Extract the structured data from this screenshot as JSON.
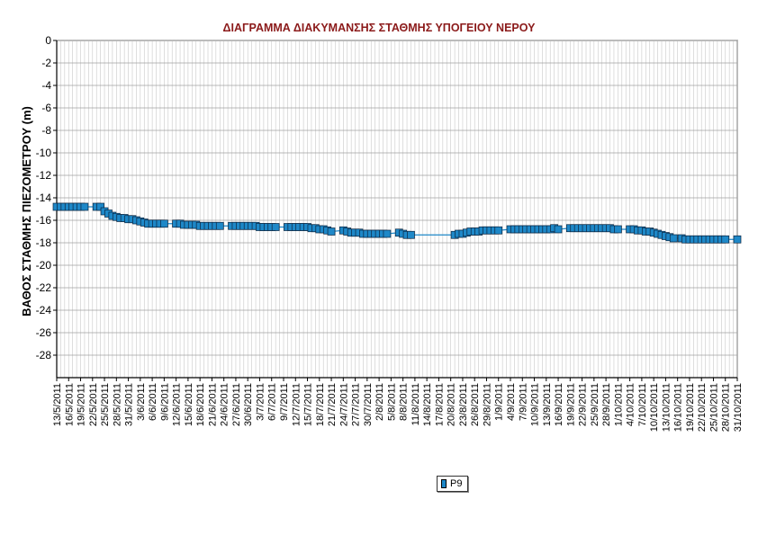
{
  "chart_data": {
    "type": "line",
    "title": "ΔΙΑΓΡΑΜΜΑ ΔΙΑΚΥΜΑΝΣΗΣ ΣΤΑΘΜΗΣ ΥΠΟΓΕΙΟΥ ΝΕΡΟΥ",
    "xlabel": "",
    "ylabel": "ΒΑΘΟΣ ΣΤΑΘΜΗΣ ΠΙΕΖΟΜΕΤΡΟΥ (m)",
    "ylim": [
      -30,
      0
    ],
    "yticks": [
      0,
      -2,
      -4,
      -6,
      -8,
      -10,
      -12,
      -14,
      -16,
      -18,
      -20,
      -22,
      -24,
      -26,
      -28
    ],
    "xlim": [
      "2011-05-13",
      "2011-10-31"
    ],
    "xtick_labels": [
      "13/5/2011",
      "16/5/2011",
      "19/5/2011",
      "22/5/2011",
      "25/5/2011",
      "28/5/2011",
      "31/5/2011",
      "3/6/2011",
      "6/6/2011",
      "9/6/2011",
      "12/6/2011",
      "15/6/2011",
      "18/6/2011",
      "21/6/2011",
      "24/6/2011",
      "27/6/2011",
      "30/6/2011",
      "3/7/2011",
      "6/7/2011",
      "9/7/2011",
      "12/7/2011",
      "15/7/2011",
      "18/7/2011",
      "21/7/2011",
      "24/7/2011",
      "27/7/2011",
      "30/7/2011",
      "2/8/2011",
      "5/8/2011",
      "8/8/2011",
      "11/8/2011",
      "14/8/2011",
      "17/8/2011",
      "20/8/2011",
      "23/8/2011",
      "26/8/2011",
      "29/8/2011",
      "1/9/2011",
      "4/9/2011",
      "7/9/2011",
      "10/9/2011",
      "13/9/2011",
      "16/9/2011",
      "19/9/2011",
      "22/9/2011",
      "25/9/2011",
      "28/9/2011",
      "1/10/2011",
      "4/10/2011",
      "7/10/2011",
      "10/10/2011",
      "13/10/2011",
      "16/10/2011",
      "19/10/2011",
      "22/10/2011",
      "25/10/2011",
      "28/10/2011",
      "31/10/2011"
    ],
    "grid": true,
    "legend": "bottom-center",
    "series": [
      {
        "name": "P9",
        "color": "#1e88c8",
        "marker": "square",
        "points": [
          [
            "2011-05-13",
            -14.8
          ],
          [
            "2011-05-14",
            -14.8
          ],
          [
            "2011-05-15",
            -14.8
          ],
          [
            "2011-05-16",
            -14.8
          ],
          [
            "2011-05-17",
            -14.8
          ],
          [
            "2011-05-18",
            -14.8
          ],
          [
            "2011-05-19",
            -14.8
          ],
          [
            "2011-05-20",
            -14.8
          ],
          [
            "2011-05-23",
            -14.8
          ],
          [
            "2011-05-24",
            -14.8
          ],
          [
            "2011-05-25",
            -15.2
          ],
          [
            "2011-05-26",
            -15.4
          ],
          [
            "2011-05-27",
            -15.6
          ],
          [
            "2011-05-28",
            -15.7
          ],
          [
            "2011-05-29",
            -15.8
          ],
          [
            "2011-05-30",
            -15.8
          ],
          [
            "2011-05-31",
            -15.9
          ],
          [
            "2011-06-01",
            -15.9
          ],
          [
            "2011-06-02",
            -16.0
          ],
          [
            "2011-06-03",
            -16.1
          ],
          [
            "2011-06-04",
            -16.2
          ],
          [
            "2011-06-05",
            -16.3
          ],
          [
            "2011-06-06",
            -16.3
          ],
          [
            "2011-06-07",
            -16.3
          ],
          [
            "2011-06-08",
            -16.3
          ],
          [
            "2011-06-09",
            -16.3
          ],
          [
            "2011-06-12",
            -16.3
          ],
          [
            "2011-06-13",
            -16.3
          ],
          [
            "2011-06-14",
            -16.4
          ],
          [
            "2011-06-15",
            -16.4
          ],
          [
            "2011-06-16",
            -16.4
          ],
          [
            "2011-06-17",
            -16.4
          ],
          [
            "2011-06-18",
            -16.5
          ],
          [
            "2011-06-19",
            -16.5
          ],
          [
            "2011-06-20",
            -16.5
          ],
          [
            "2011-06-21",
            -16.5
          ],
          [
            "2011-06-22",
            -16.5
          ],
          [
            "2011-06-23",
            -16.5
          ],
          [
            "2011-06-26",
            -16.5
          ],
          [
            "2011-06-27",
            -16.5
          ],
          [
            "2011-06-28",
            -16.5
          ],
          [
            "2011-06-29",
            -16.5
          ],
          [
            "2011-06-30",
            -16.5
          ],
          [
            "2011-07-01",
            -16.5
          ],
          [
            "2011-07-02",
            -16.5
          ],
          [
            "2011-07-03",
            -16.6
          ],
          [
            "2011-07-04",
            -16.6
          ],
          [
            "2011-07-05",
            -16.6
          ],
          [
            "2011-07-06",
            -16.6
          ],
          [
            "2011-07-07",
            -16.6
          ],
          [
            "2011-07-10",
            -16.6
          ],
          [
            "2011-07-11",
            -16.6
          ],
          [
            "2011-07-12",
            -16.6
          ],
          [
            "2011-07-13",
            -16.6
          ],
          [
            "2011-07-14",
            -16.6
          ],
          [
            "2011-07-15",
            -16.6
          ],
          [
            "2011-07-16",
            -16.7
          ],
          [
            "2011-07-17",
            -16.7
          ],
          [
            "2011-07-18",
            -16.8
          ],
          [
            "2011-07-19",
            -16.8
          ],
          [
            "2011-07-20",
            -16.9
          ],
          [
            "2011-07-21",
            -17.0
          ],
          [
            "2011-07-24",
            -16.9
          ],
          [
            "2011-07-25",
            -17.0
          ],
          [
            "2011-07-26",
            -17.1
          ],
          [
            "2011-07-27",
            -17.1
          ],
          [
            "2011-07-28",
            -17.1
          ],
          [
            "2011-07-29",
            -17.2
          ],
          [
            "2011-07-30",
            -17.2
          ],
          [
            "2011-07-31",
            -17.2
          ],
          [
            "2011-08-01",
            -17.2
          ],
          [
            "2011-08-02",
            -17.2
          ],
          [
            "2011-08-03",
            -17.2
          ],
          [
            "2011-08-04",
            -17.2
          ],
          [
            "2011-08-07",
            -17.1
          ],
          [
            "2011-08-08",
            -17.2
          ],
          [
            "2011-08-09",
            -17.3
          ],
          [
            "2011-08-10",
            -17.3
          ],
          [
            "2011-08-21",
            -17.3
          ],
          [
            "2011-08-22",
            -17.2
          ],
          [
            "2011-08-23",
            -17.2
          ],
          [
            "2011-08-24",
            -17.1
          ],
          [
            "2011-08-25",
            -17.0
          ],
          [
            "2011-08-26",
            -17.0
          ],
          [
            "2011-08-27",
            -17.0
          ],
          [
            "2011-08-28",
            -16.9
          ],
          [
            "2011-08-29",
            -16.9
          ],
          [
            "2011-08-30",
            -16.9
          ],
          [
            "2011-08-31",
            -16.9
          ],
          [
            "2011-09-01",
            -16.9
          ],
          [
            "2011-09-04",
            -16.8
          ],
          [
            "2011-09-05",
            -16.8
          ],
          [
            "2011-09-06",
            -16.8
          ],
          [
            "2011-09-07",
            -16.8
          ],
          [
            "2011-09-08",
            -16.8
          ],
          [
            "2011-09-09",
            -16.8
          ],
          [
            "2011-09-10",
            -16.8
          ],
          [
            "2011-09-11",
            -16.8
          ],
          [
            "2011-09-12",
            -16.8
          ],
          [
            "2011-09-13",
            -16.8
          ],
          [
            "2011-09-14",
            -16.8
          ],
          [
            "2011-09-15",
            -16.7
          ],
          [
            "2011-09-16",
            -16.8
          ],
          [
            "2011-09-19",
            -16.7
          ],
          [
            "2011-09-20",
            -16.7
          ],
          [
            "2011-09-21",
            -16.7
          ],
          [
            "2011-09-22",
            -16.7
          ],
          [
            "2011-09-23",
            -16.7
          ],
          [
            "2011-09-24",
            -16.7
          ],
          [
            "2011-09-25",
            -16.7
          ],
          [
            "2011-09-26",
            -16.7
          ],
          [
            "2011-09-27",
            -16.7
          ],
          [
            "2011-09-28",
            -16.7
          ],
          [
            "2011-09-29",
            -16.7
          ],
          [
            "2011-09-30",
            -16.8
          ],
          [
            "2011-10-01",
            -16.8
          ],
          [
            "2011-10-04",
            -16.8
          ],
          [
            "2011-10-05",
            -16.8
          ],
          [
            "2011-10-06",
            -16.9
          ],
          [
            "2011-10-07",
            -16.9
          ],
          [
            "2011-10-08",
            -17.0
          ],
          [
            "2011-10-09",
            -17.0
          ],
          [
            "2011-10-10",
            -17.1
          ],
          [
            "2011-10-11",
            -17.2
          ],
          [
            "2011-10-12",
            -17.3
          ],
          [
            "2011-10-13",
            -17.4
          ],
          [
            "2011-10-14",
            -17.5
          ],
          [
            "2011-10-15",
            -17.6
          ],
          [
            "2011-10-17",
            -17.6
          ],
          [
            "2011-10-18",
            -17.7
          ],
          [
            "2011-10-19",
            -17.7
          ],
          [
            "2011-10-20",
            -17.7
          ],
          [
            "2011-10-21",
            -17.7
          ],
          [
            "2011-10-22",
            -17.7
          ],
          [
            "2011-10-23",
            -17.7
          ],
          [
            "2011-10-24",
            -17.7
          ],
          [
            "2011-10-25",
            -17.7
          ],
          [
            "2011-10-26",
            -17.7
          ],
          [
            "2011-10-27",
            -17.7
          ],
          [
            "2011-10-28",
            -17.7
          ],
          [
            "2011-10-31",
            -17.7
          ]
        ]
      }
    ]
  }
}
